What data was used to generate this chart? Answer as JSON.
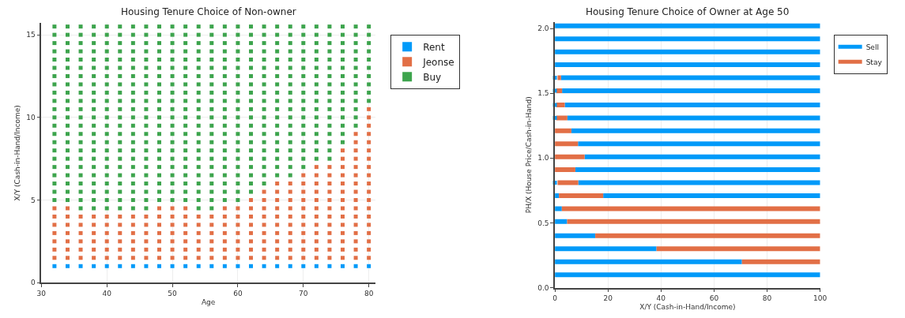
{
  "chart_data": [
    {
      "type": "scatter",
      "title": "Housing Tenure Choice of Non-owner",
      "xlabel": "Age",
      "ylabel": "X/Y (Cash-in-Hand/Income)",
      "xlim": [
        30,
        81
      ],
      "xticks": [
        30,
        40,
        50,
        60,
        70,
        80
      ],
      "ylim": [
        0,
        15.7
      ],
      "yticks": [
        0,
        5,
        10,
        15
      ],
      "grid": true,
      "legend": "top right",
      "marker": "square",
      "series": [
        {
          "name": "Rent",
          "color": "#009af9",
          "x": [
            32,
            34,
            36,
            38,
            40,
            42,
            44,
            46,
            48,
            50,
            52,
            54,
            56,
            58,
            60,
            62,
            64,
            66,
            68,
            70,
            72,
            74,
            76,
            78,
            80
          ],
          "values": [
            1,
            1,
            1,
            1,
            1,
            1,
            1,
            1,
            1,
            1,
            1,
            1,
            1,
            1,
            1,
            1,
            1,
            1,
            1,
            1,
            1,
            1,
            1,
            1,
            1
          ]
        },
        {
          "name": "Jeonse",
          "color": "#e26f46",
          "x": [
            32,
            32,
            32,
            32,
            32,
            32,
            32,
            34,
            34,
            34,
            34,
            34,
            34,
            34,
            36,
            36,
            36,
            36,
            36,
            36,
            38,
            38,
            38,
            38,
            38,
            38,
            40,
            40,
            40,
            40,
            40,
            40,
            42,
            42,
            42,
            42,
            42,
            42,
            44,
            44,
            44,
            44,
            44,
            44,
            46,
            46,
            46,
            46,
            46,
            46,
            48,
            48,
            48,
            48,
            48,
            48,
            48,
            50,
            50,
            50,
            50,
            50,
            50,
            50,
            52,
            52,
            52,
            52,
            52,
            52,
            52,
            54,
            54,
            54,
            54,
            54,
            54,
            56,
            56,
            56,
            56,
            56,
            56,
            58,
            58,
            58,
            58,
            58,
            58,
            58,
            60,
            60,
            60,
            60,
            60,
            60,
            60,
            62,
            62,
            62,
            62,
            62,
            62,
            62,
            62,
            64,
            64,
            64,
            64,
            64,
            64,
            64,
            64,
            64,
            66,
            66,
            66,
            66,
            66,
            66,
            66,
            66,
            66,
            66,
            68,
            68,
            68,
            68,
            68,
            68,
            68,
            68,
            68,
            68,
            70,
            70,
            70,
            70,
            70,
            70,
            70,
            70,
            70,
            70,
            70,
            72,
            72,
            72,
            72,
            72,
            72,
            72,
            72,
            72,
            72,
            72,
            72,
            74,
            74,
            74,
            74,
            74,
            74,
            74,
            74,
            74,
            74,
            74,
            74,
            76,
            76,
            76,
            76,
            76,
            76,
            76,
            76,
            76,
            76,
            76,
            76,
            76,
            76,
            78,
            78,
            78,
            78,
            78,
            78,
            78,
            78,
            78,
            78,
            78,
            78,
            78,
            78,
            78,
            78,
            80,
            80,
            80,
            80,
            80,
            80,
            80,
            80,
            80,
            80,
            80,
            80,
            80,
            80,
            80,
            80,
            80,
            80,
            80
          ],
          "values": [
            1.5,
            2,
            2.5,
            3,
            3.5,
            4,
            4.5,
            1.5,
            2,
            2.5,
            3,
            3.5,
            4,
            4.5,
            1.5,
            2,
            2.5,
            3,
            3.5,
            4,
            1.5,
            2,
            2.5,
            3,
            3.5,
            4,
            1.5,
            2,
            2.5,
            3,
            3.5,
            4,
            1.5,
            2,
            2.5,
            3,
            3.5,
            4,
            1.5,
            2,
            2.5,
            3,
            3.5,
            4,
            1.5,
            2,
            2.5,
            3,
            3.5,
            4,
            1.5,
            2,
            2.5,
            3,
            3.5,
            4,
            4.5,
            1.5,
            2,
            2.5,
            3,
            3.5,
            4,
            4.5,
            1.5,
            2,
            2.5,
            3,
            3.5,
            4,
            4.5,
            1.5,
            2,
            2.5,
            3,
            3.5,
            4,
            1.5,
            2,
            2.5,
            3,
            3.5,
            4,
            1.5,
            2,
            2.5,
            3,
            3.5,
            4,
            4.5,
            1.5,
            2,
            2.5,
            3,
            3.5,
            4,
            4.5,
            1.5,
            2,
            2.5,
            3,
            3.5,
            4,
            4.5,
            5,
            1.5,
            2,
            2.5,
            3,
            3.5,
            4,
            4.5,
            5,
            5.5,
            1.5,
            2,
            2.5,
            3,
            3.5,
            4,
            4.5,
            5,
            5.5,
            6,
            1.5,
            2,
            2.5,
            3,
            3.5,
            4,
            4.5,
            5,
            5.5,
            6,
            1.5,
            2,
            2.5,
            3,
            3.5,
            4,
            4.5,
            5,
            5.5,
            6,
            6.5,
            1.5,
            2,
            2.5,
            3,
            3.5,
            4,
            4.5,
            5,
            5.5,
            6,
            6.5,
            7,
            1.5,
            2,
            2.5,
            3,
            3.5,
            4,
            4.5,
            5,
            5.5,
            6,
            6.5,
            7,
            1.5,
            2,
            2.5,
            3,
            3.5,
            4,
            4.5,
            5,
            5.5,
            6,
            6.5,
            7,
            7.5,
            8,
            1.5,
            2,
            2.5,
            3,
            3.5,
            4,
            4.5,
            5,
            5.5,
            6,
            6.5,
            7,
            7.5,
            8,
            8.5,
            9,
            1.5,
            2,
            2.5,
            3,
            3.5,
            4,
            4.5,
            5,
            5.5,
            6,
            6.5,
            7,
            7.5,
            8,
            8.5,
            9,
            9.5,
            10,
            10.5
          ]
        },
        {
          "name": "Buy",
          "color": "#3da44d",
          "x": [
            32,
            32,
            32,
            32,
            32,
            32,
            32,
            32,
            32,
            32,
            32,
            32,
            32,
            32,
            32,
            32,
            32,
            32,
            32,
            32,
            32,
            32,
            34,
            34,
            34,
            34,
            34,
            34,
            34,
            34,
            34,
            34,
            34,
            34,
            34,
            34,
            34,
            34,
            34,
            34,
            34,
            34,
            34,
            34,
            36,
            36,
            36,
            36,
            36,
            36,
            36,
            36,
            36,
            36,
            36,
            36,
            36,
            36,
            36,
            36,
            36,
            36,
            36,
            36,
            36,
            36,
            36,
            38,
            38,
            38,
            38,
            38,
            38,
            38,
            38,
            38,
            38,
            38,
            38,
            38,
            38,
            38,
            38,
            38,
            38,
            38,
            38,
            38,
            38,
            38,
            40,
            40,
            40,
            40,
            40,
            40,
            40,
            40,
            40,
            40,
            40,
            40,
            40,
            40,
            40,
            40,
            40,
            40,
            40,
            40,
            40,
            40,
            40,
            42,
            42,
            42,
            42,
            42,
            42,
            42,
            42,
            42,
            42,
            42,
            42,
            42,
            42,
            42,
            42,
            42,
            42,
            42,
            42,
            42,
            42,
            42,
            44,
            44,
            44,
            44,
            44,
            44,
            44,
            44,
            44,
            44,
            44,
            44,
            44,
            44,
            44,
            44,
            44,
            44,
            44,
            44,
            44,
            44,
            44,
            46,
            46,
            46,
            46,
            46,
            46,
            46,
            46,
            46,
            46,
            46,
            46,
            46,
            46,
            46,
            46,
            46,
            46,
            46,
            46,
            46,
            46,
            46,
            48,
            48,
            48,
            48,
            48,
            48,
            48,
            48,
            48,
            48,
            48,
            48,
            48,
            48,
            48,
            48,
            48,
            48,
            48,
            48,
            48,
            48,
            50,
            50,
            50,
            50,
            50,
            50,
            50,
            50,
            50,
            50,
            50,
            50,
            50,
            50,
            50,
            50,
            50,
            50,
            50,
            50,
            50,
            50,
            52,
            52,
            52,
            52,
            52,
            52,
            52,
            52,
            52,
            52,
            52,
            52,
            52,
            52,
            52,
            52,
            52,
            52,
            52,
            52,
            52,
            52,
            54,
            54,
            54,
            54,
            54,
            54,
            54,
            54,
            54,
            54,
            54,
            54,
            54,
            54,
            54,
            54,
            54,
            54,
            54,
            54,
            54,
            54,
            54,
            56,
            56,
            56,
            56,
            56,
            56,
            56,
            56,
            56,
            56,
            56,
            56,
            56,
            56,
            56,
            56,
            56,
            56,
            56,
            56,
            56,
            56,
            56,
            58,
            58,
            58,
            58,
            58,
            58,
            58,
            58,
            58,
            58,
            58,
            58,
            58,
            58,
            58,
            58,
            58,
            58,
            58,
            58,
            58,
            58,
            60,
            60,
            60,
            60,
            60,
            60,
            60,
            60,
            60,
            60,
            60,
            60,
            60,
            60,
            60,
            60,
            60,
            60,
            60,
            60,
            60,
            60,
            62,
            62,
            62,
            62,
            62,
            62,
            62,
            62,
            62,
            62,
            62,
            62,
            62,
            62,
            62,
            62,
            62,
            62,
            62,
            62,
            62,
            64,
            64,
            64,
            64,
            64,
            64,
            64,
            64,
            64,
            64,
            64,
            64,
            64,
            64,
            64,
            64,
            64,
            64,
            64,
            64,
            66,
            66,
            66,
            66,
            66,
            66,
            66,
            66,
            66,
            66,
            66,
            66,
            66,
            66,
            66,
            66,
            66,
            66,
            66,
            68,
            68,
            68,
            68,
            68,
            68,
            68,
            68,
            68,
            68,
            68,
            68,
            68,
            68,
            68,
            68,
            68,
            68,
            68,
            70,
            70,
            70,
            70,
            70,
            70,
            70,
            70,
            70,
            70,
            70,
            70,
            70,
            70,
            70,
            70,
            70,
            70,
            72,
            72,
            72,
            72,
            72,
            72,
            72,
            72,
            72,
            72,
            72,
            72,
            72,
            72,
            72,
            72,
            72,
            74,
            74,
            74,
            74,
            74,
            74,
            74,
            74,
            74,
            74,
            74,
            74,
            74,
            74,
            74,
            74,
            74,
            76,
            76,
            76,
            76,
            76,
            76,
            76,
            76,
            76,
            76,
            76,
            76,
            76,
            76,
            76,
            78,
            78,
            78,
            78,
            78,
            78,
            78,
            78,
            78,
            78,
            78,
            78,
            78,
            80,
            80,
            80,
            80,
            80,
            80,
            80,
            80,
            80,
            80
          ],
          "values": [
            5,
            5.5,
            6,
            6.5,
            7,
            7.5,
            8,
            8.5,
            9,
            9.5,
            10,
            10.5,
            11,
            11.5,
            12,
            12.5,
            13,
            13.5,
            14,
            14.5,
            15,
            15.5,
            5,
            5.5,
            6,
            6.5,
            7,
            7.5,
            8,
            8.5,
            9,
            9.5,
            10,
            10.5,
            11,
            11.5,
            12,
            12.5,
            13,
            13.5,
            14,
            14.5,
            15,
            15.5,
            4.5,
            5,
            5.5,
            6,
            6.5,
            7,
            7.5,
            8,
            8.5,
            9,
            9.5,
            10,
            10.5,
            11,
            11.5,
            12,
            12.5,
            13,
            13.5,
            14,
            14.5,
            15,
            15.5,
            4.5,
            5,
            5.5,
            6,
            6.5,
            7,
            7.5,
            8,
            8.5,
            9,
            9.5,
            10,
            10.5,
            11,
            11.5,
            12,
            12.5,
            13,
            13.5,
            14,
            14.5,
            15,
            15.5,
            4.5,
            5,
            5.5,
            6,
            6.5,
            7,
            7.5,
            8,
            8.5,
            9,
            9.5,
            10,
            10.5,
            11,
            11.5,
            12,
            12.5,
            13,
            13.5,
            14,
            14.5,
            15,
            15.5,
            4.5,
            5,
            5.5,
            6,
            6.5,
            7,
            7.5,
            8,
            8.5,
            9,
            9.5,
            10,
            10.5,
            11,
            11.5,
            12,
            12.5,
            13,
            13.5,
            14,
            14.5,
            15,
            15.5,
            4.5,
            5,
            5.5,
            6,
            6.5,
            7,
            7.5,
            8,
            8.5,
            9,
            9.5,
            10,
            10.5,
            11,
            11.5,
            12,
            12.5,
            13,
            13.5,
            14,
            14.5,
            15,
            15.5,
            4.5,
            5,
            5.5,
            6,
            6.5,
            7,
            7.5,
            8,
            8.5,
            9,
            9.5,
            10,
            10.5,
            11,
            11.5,
            12,
            12.5,
            13,
            13.5,
            14,
            14.5,
            15,
            15.5,
            5,
            5.5,
            6,
            6.5,
            7,
            7.5,
            8,
            8.5,
            9,
            9.5,
            10,
            10.5,
            11,
            11.5,
            12,
            12.5,
            13,
            13.5,
            14,
            14.5,
            15,
            15.5,
            5,
            5.5,
            6,
            6.5,
            7,
            7.5,
            8,
            8.5,
            9,
            9.5,
            10,
            10.5,
            11,
            11.5,
            12,
            12.5,
            13,
            13.5,
            14,
            14.5,
            15,
            15.5,
            5,
            5.5,
            6,
            6.5,
            7,
            7.5,
            8,
            8.5,
            9,
            9.5,
            10,
            10.5,
            11,
            11.5,
            12,
            12.5,
            13,
            13.5,
            14,
            14.5,
            15,
            15.5,
            4.5,
            5,
            5.5,
            6,
            6.5,
            7,
            7.5,
            8,
            8.5,
            9,
            9.5,
            10,
            10.5,
            11,
            11.5,
            12,
            12.5,
            13,
            13.5,
            14,
            14.5,
            15,
            15.5,
            4.5,
            5,
            5.5,
            6,
            6.5,
            7,
            7.5,
            8,
            8.5,
            9,
            9.5,
            10,
            10.5,
            11,
            11.5,
            12,
            12.5,
            13,
            13.5,
            14,
            14.5,
            15,
            15.5,
            5,
            5.5,
            6,
            6.5,
            7,
            7.5,
            8,
            8.5,
            9,
            9.5,
            10,
            10.5,
            11,
            11.5,
            12,
            12.5,
            13,
            13.5,
            14,
            14.5,
            15,
            15.5,
            5,
            5.5,
            6,
            6.5,
            7,
            7.5,
            8,
            8.5,
            9,
            9.5,
            10,
            10.5,
            11,
            11.5,
            12,
            12.5,
            13,
            13.5,
            14,
            14.5,
            15,
            15.5,
            5.5,
            6,
            6.5,
            7,
            7.5,
            8,
            8.5,
            9,
            9.5,
            10,
            10.5,
            11,
            11.5,
            12,
            12.5,
            13,
            13.5,
            14,
            14.5,
            15,
            15.5,
            6,
            6.5,
            7,
            7.5,
            8,
            8.5,
            9,
            9.5,
            10,
            10.5,
            11,
            11.5,
            12,
            12.5,
            13,
            13.5,
            14,
            14.5,
            15,
            15.5,
            6.5,
            7,
            7.5,
            8,
            8.5,
            9,
            9.5,
            10,
            10.5,
            11,
            11.5,
            12,
            12.5,
            13,
            13.5,
            14,
            14.5,
            15,
            15.5,
            6.5,
            7,
            7.5,
            8,
            8.5,
            9,
            9.5,
            10,
            10.5,
            11,
            11.5,
            12,
            12.5,
            13,
            13.5,
            14,
            14.5,
            15,
            15.5,
            7,
            7.5,
            8,
            8.5,
            9,
            9.5,
            10,
            10.5,
            11,
            11.5,
            12,
            12.5,
            13,
            13.5,
            14,
            14.5,
            15,
            15.5,
            7.5,
            8,
            8.5,
            9,
            9.5,
            10,
            10.5,
            11,
            11.5,
            12,
            12.5,
            13,
            13.5,
            14,
            14.5,
            15,
            15.5,
            7.5,
            8,
            8.5,
            9,
            9.5,
            10,
            10.5,
            11,
            11.5,
            12,
            12.5,
            13,
            13.5,
            14,
            14.5,
            15,
            15.5,
            8.5,
            9,
            9.5,
            10,
            10.5,
            11,
            11.5,
            12,
            12.5,
            13,
            13.5,
            14,
            14.5,
            15,
            15.5,
            9.5,
            10,
            10.5,
            11,
            11.5,
            12,
            12.5,
            13,
            13.5,
            14,
            14.5,
            15,
            15.5,
            11,
            11.5,
            12,
            12.5,
            13,
            13.5,
            14,
            14.5,
            15,
            15.5
          ]
        }
      ]
    },
    {
      "type": "line",
      "title": "Housing Tenure Choice of Owner at Age 50",
      "xlabel": "X/Y (Cash-in-Hand/Income)",
      "ylabel": "PH/X (House Price/Cash-in-Hand)",
      "xlim": [
        0,
        100
      ],
      "xticks": [
        0,
        20,
        40,
        60,
        80,
        100
      ],
      "ylim": [
        0,
        2.05
      ],
      "yticks": [
        {
          "value": 0,
          "label": "0.0"
        },
        {
          "value": 0.5,
          "label": "0.5"
        },
        {
          "value": 1,
          "label": "1.0"
        },
        {
          "value": 1.5,
          "label": "1.5"
        },
        {
          "value": 2,
          "label": "2.0"
        }
      ],
      "grid": true,
      "legend": "top right",
      "line_style": "solid",
      "series": [
        {
          "name": "Sell",
          "color": "#009af9",
          "x": [
            0,
            100
          ],
          "values": [
            0.1,
            0.1
          ]
        },
        {
          "color": "#009af9",
          "x": [
            0,
            70.5
          ],
          "values": [
            0.2,
            0.2
          ]
        },
        {
          "color": "#009af9",
          "x": [
            0,
            38.3
          ],
          "values": [
            0.3,
            0.3
          ]
        },
        {
          "color": "#009af9",
          "x": [
            0,
            15.2
          ],
          "values": [
            0.4,
            0.4
          ]
        },
        {
          "color": "#009af9",
          "x": [
            0,
            4.6
          ],
          "values": [
            0.51,
            0.51
          ]
        },
        {
          "color": "#009af9",
          "x": [
            0,
            2.6
          ],
          "values": [
            0.61,
            0.61
          ]
        },
        {
          "color": "#009af9",
          "x": [
            0,
            1.5
          ],
          "values": [
            0.71,
            0.71
          ]
        },
        {
          "color": "#009af9",
          "x": [
            18.2,
            100
          ],
          "values": [
            0.71,
            0.71
          ]
        },
        {
          "color": "#009af9",
          "x": [
            8.8,
            100
          ],
          "values": [
            0.81,
            0.81
          ]
        },
        {
          "color": "#009af9",
          "x": [
            7.7,
            100
          ],
          "values": [
            0.91,
            0.91
          ]
        },
        {
          "color": "#009af9",
          "x": [
            11.2,
            100
          ],
          "values": [
            1.01,
            1.01
          ]
        },
        {
          "color": "#009af9",
          "x": [
            8.7,
            100
          ],
          "values": [
            1.11,
            1.11
          ]
        },
        {
          "color": "#009af9",
          "x": [
            6.2,
            100
          ],
          "values": [
            1.21,
            1.21
          ]
        },
        {
          "color": "#009af9",
          "x": [
            4.7,
            100
          ],
          "values": [
            1.31,
            1.31
          ]
        },
        {
          "color": "#009af9",
          "x": [
            3.7,
            100
          ],
          "values": [
            1.41,
            1.41
          ]
        },
        {
          "color": "#009af9",
          "x": [
            2.7,
            100
          ],
          "values": [
            1.52,
            1.52
          ]
        },
        {
          "color": "#009af9",
          "x": [
            2.3,
            100
          ],
          "values": [
            1.62,
            1.62
          ]
        },
        {
          "color": "#009af9",
          "x": [
            0,
            100
          ],
          "values": [
            1.72,
            1.72
          ]
        },
        {
          "color": "#009af9",
          "x": [
            0,
            100
          ],
          "values": [
            1.82,
            1.82
          ]
        },
        {
          "color": "#009af9",
          "x": [
            0,
            100
          ],
          "values": [
            1.92,
            1.92
          ]
        },
        {
          "color": "#009af9",
          "x": [
            0,
            100
          ],
          "values": [
            2.02,
            2.02
          ]
        },
        {
          "name": "Stay",
          "color": "#e26f46",
          "x": [
            70.5,
            100
          ],
          "values": [
            0.2,
            0.2
          ]
        },
        {
          "color": "#e26f46",
          "x": [
            38.3,
            100
          ],
          "values": [
            0.3,
            0.3
          ]
        },
        {
          "color": "#e26f46",
          "x": [
            15.2,
            100
          ],
          "values": [
            0.4,
            0.4
          ]
        },
        {
          "color": "#e26f46",
          "x": [
            4.6,
            100
          ],
          "values": [
            0.51,
            0.51
          ]
        },
        {
          "color": "#e26f46",
          "x": [
            2.6,
            100
          ],
          "values": [
            0.61,
            0.61
          ]
        },
        {
          "color": "#e26f46",
          "x": [
            1.5,
            18.2
          ],
          "values": [
            0.71,
            0.71
          ]
        },
        {
          "color": "#e26f46",
          "x": [
            1,
            8.8
          ],
          "values": [
            0.81,
            0.81
          ]
        },
        {
          "color": "#e26f46",
          "x": [
            0,
            7.7
          ],
          "values": [
            0.91,
            0.91
          ]
        },
        {
          "color": "#e26f46",
          "x": [
            0,
            11.2
          ],
          "values": [
            1.01,
            1.01
          ]
        },
        {
          "color": "#e26f46",
          "x": [
            0,
            8.7
          ],
          "values": [
            1.11,
            1.11
          ]
        },
        {
          "color": "#e26f46",
          "x": [
            0,
            6.2
          ],
          "values": [
            1.21,
            1.21
          ]
        },
        {
          "color": "#e26f46",
          "x": [
            0.5,
            4.7
          ],
          "values": [
            1.31,
            1.31
          ]
        },
        {
          "color": "#e26f46",
          "x": [
            0.5,
            3.7
          ],
          "values": [
            1.41,
            1.41
          ]
        },
        {
          "color": "#e26f46",
          "x": [
            0.5,
            2.7
          ],
          "values": [
            1.52,
            1.52
          ]
        },
        {
          "color": "#e26f46",
          "x": [
            1,
            2.3
          ],
          "values": [
            1.62,
            1.62
          ]
        },
        {
          "type": "scatter",
          "marker": "square",
          "color": "#009af9",
          "x": [
            0,
            0,
            0,
            0,
            0
          ],
          "values": [
            0.81,
            1.31,
            1.41,
            1.52,
            1.62
          ]
        }
      ]
    }
  ]
}
